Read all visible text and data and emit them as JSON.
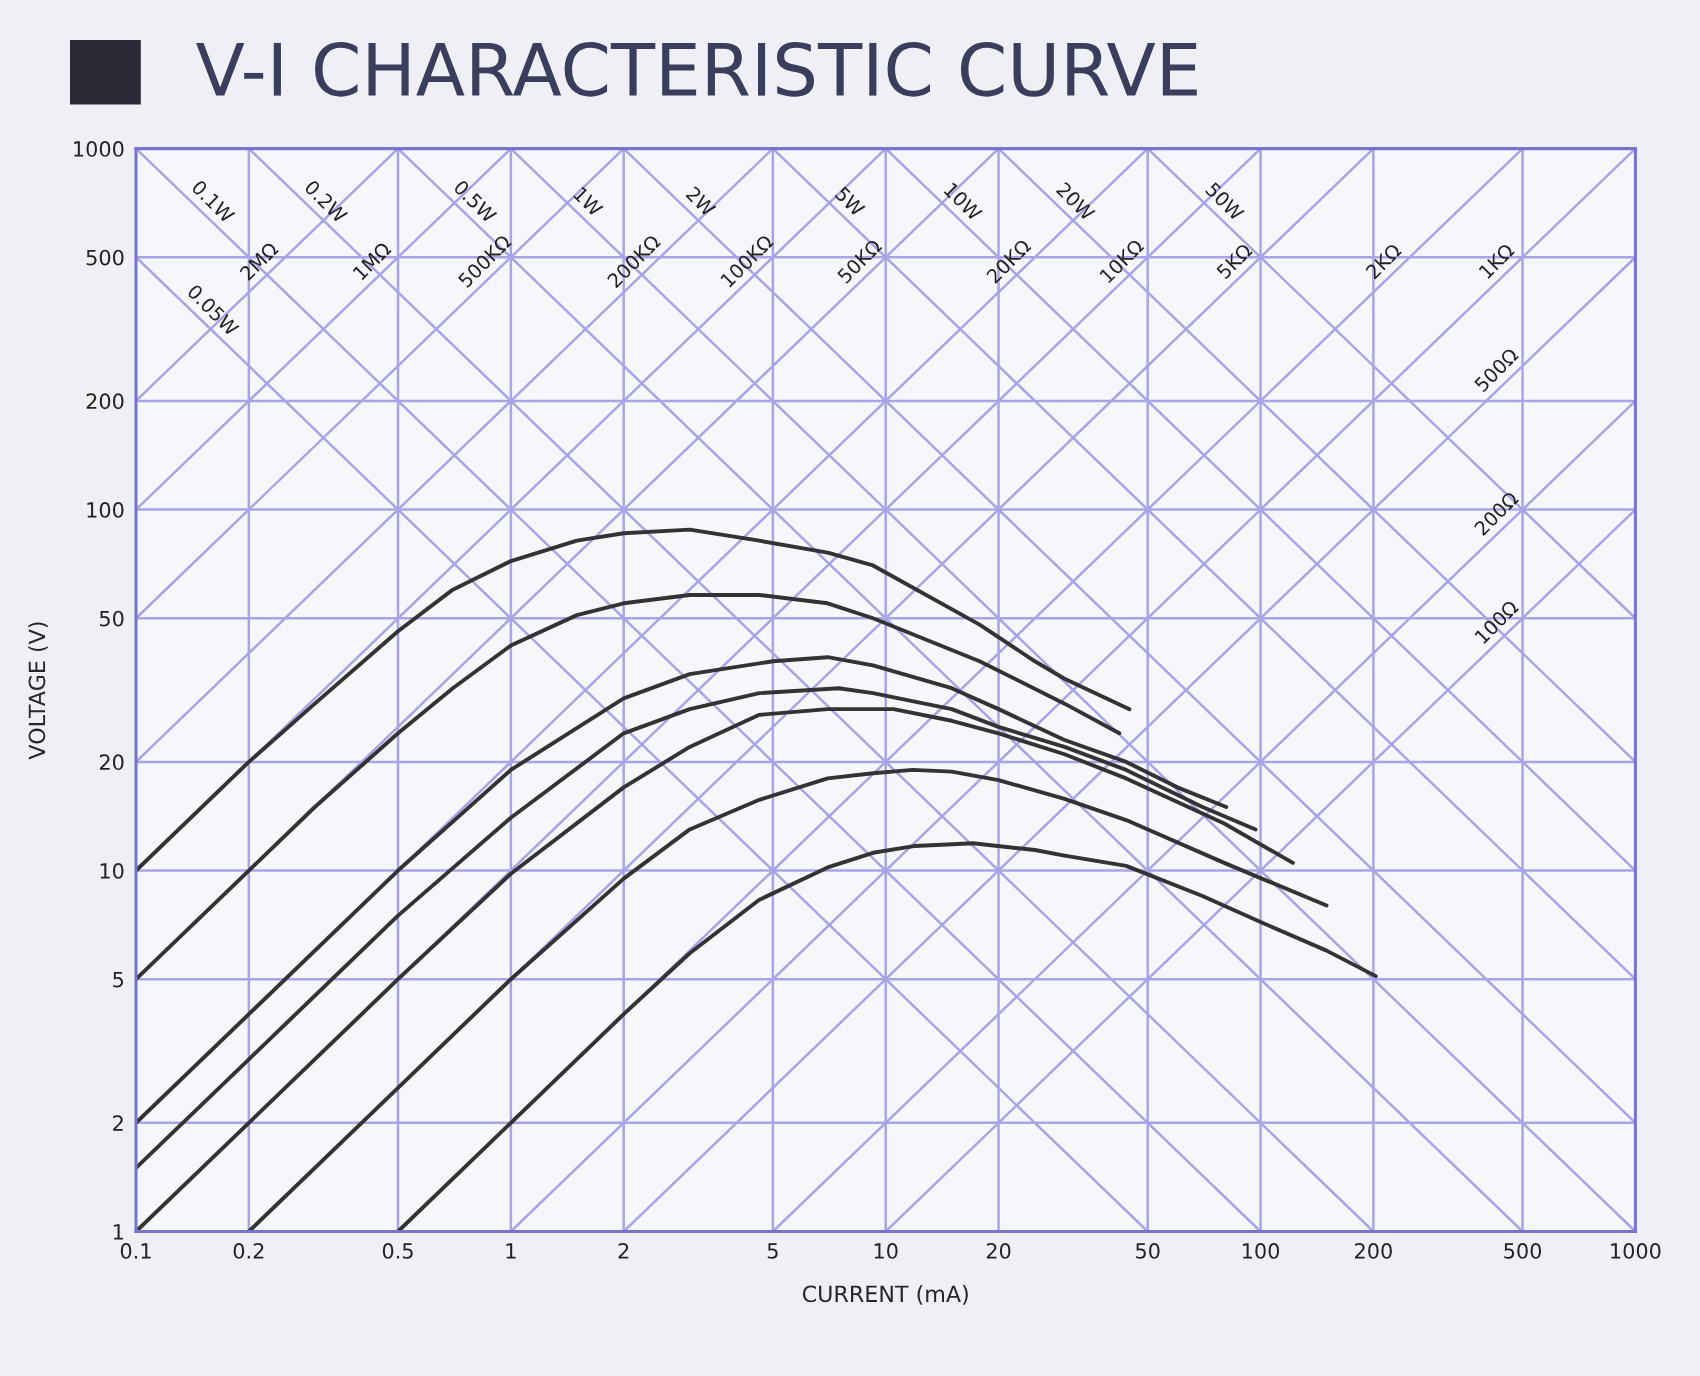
{
  "chart_data": {
    "type": "line",
    "title": "V-I CHARACTERISTIC CURVE",
    "xlabel": "CURRENT (mA)",
    "ylabel": "VOLTAGE (V)",
    "log": "xy",
    "xlim": [
      0.1,
      1000
    ],
    "ylim": [
      1,
      1000
    ],
    "xticks": [
      0.1,
      0.2,
      0.5,
      1,
      2,
      5,
      10,
      20,
      50,
      100,
      200,
      500,
      1000
    ],
    "yticks": [
      1,
      2,
      5,
      10,
      20,
      50,
      100,
      200,
      500,
      1000
    ],
    "grid": true,
    "legend": false,
    "marker": "none",
    "line_style": "solid",
    "series": [
      {
        "color": "#333333",
        "x": [
          0.1,
          0.2,
          0.3,
          0.5,
          0.7,
          1,
          1.5,
          2,
          3,
          4.6,
          7,
          9.25,
          17.8,
          25,
          30,
          44.7
        ],
        "values": [
          10,
          20,
          29,
          46,
          60,
          72,
          82,
          86,
          88,
          82,
          76,
          70,
          48,
          38,
          34,
          28
        ]
      },
      {
        "color": "#333333",
        "x": [
          0.1,
          0.2,
          0.3,
          0.5,
          0.7,
          1,
          1.5,
          2,
          3,
          4.6,
          7,
          9.25,
          17.8,
          30,
          42
        ],
        "values": [
          5,
          10,
          15,
          24,
          32,
          42,
          51,
          55,
          58,
          58,
          55,
          50,
          38,
          29,
          24
        ]
      },
      {
        "color": "#333333",
        "x": [
          0.1,
          0.2,
          0.5,
          1,
          2,
          3,
          5,
          7,
          9.25,
          15,
          20,
          30,
          43.8,
          60,
          81
        ],
        "values": [
          2,
          4,
          10,
          19,
          30,
          35,
          38,
          39,
          37,
          32,
          28,
          23,
          20,
          17,
          15
        ]
      },
      {
        "color": "#333333",
        "x": [
          0.1,
          0.2,
          0.5,
          1,
          2,
          3,
          4.6,
          7.5,
          9.25,
          15,
          20,
          30,
          43.8,
          70,
          97
        ],
        "values": [
          1.5,
          3,
          7.5,
          14,
          24,
          28,
          31,
          32,
          31,
          28,
          25,
          22,
          19,
          15,
          13
        ]
      },
      {
        "color": "#333333",
        "x": [
          0.1,
          0.2,
          0.5,
          1,
          2,
          3,
          4.6,
          7,
          10.5,
          15,
          20,
          30,
          43.8,
          80,
          122
        ],
        "values": [
          1,
          2,
          5,
          9.8,
          17,
          22,
          27,
          28,
          28,
          26,
          24,
          21,
          18,
          13.5,
          10.5
        ]
      },
      {
        "color": "#333333",
        "x": [
          0.2,
          0.5,
          1,
          2,
          3,
          4.6,
          7,
          9.25,
          11.8,
          15,
          20,
          30,
          43.8,
          80,
          150
        ],
        "values": [
          1,
          2.5,
          5,
          9.5,
          13,
          15.7,
          18,
          18.6,
          19,
          18.8,
          17.8,
          15.8,
          13.8,
          10.5,
          8
        ]
      },
      {
        "color": "#333333",
        "x": [
          0.5,
          1,
          2,
          3,
          4.6,
          7,
          9.25,
          12,
          17.1,
          25,
          30,
          43.8,
          70,
          100,
          150,
          203
        ],
        "values": [
          1,
          2,
          4,
          5.9,
          8.3,
          10.2,
          11.2,
          11.7,
          11.9,
          11.4,
          11,
          10.3,
          8.5,
          7.2,
          6,
          5.1
        ]
      },
      {
        "name": "0.05W",
        "color": "#a9a4e6",
        "x": [
          0.1,
          50
        ],
        "values": [
          500,
          1
        ]
      },
      {
        "name": "0.1W",
        "color": "#a9a4e6",
        "x": [
          0.1,
          100
        ],
        "values": [
          1000,
          1
        ]
      },
      {
        "name": "0.2W",
        "color": "#a9a4e6",
        "x": [
          0.2,
          200
        ],
        "values": [
          1000,
          1
        ]
      },
      {
        "name": "0.5W",
        "color": "#a9a4e6",
        "x": [
          0.5,
          500
        ],
        "values": [
          1000,
          1
        ]
      },
      {
        "name": "1W",
        "color": "#a9a4e6",
        "x": [
          1,
          1000
        ],
        "values": [
          1000,
          1
        ]
      },
      {
        "name": "2W",
        "color": "#a9a4e6",
        "x": [
          2,
          1000
        ],
        "values": [
          1000,
          2
        ]
      },
      {
        "name": "5W",
        "color": "#a9a4e6",
        "x": [
          5,
          1000
        ],
        "values": [
          1000,
          5
        ]
      },
      {
        "name": "10W",
        "color": "#a9a4e6",
        "x": [
          10,
          1000
        ],
        "values": [
          1000,
          10
        ]
      },
      {
        "name": "20W",
        "color": "#a9a4e6",
        "x": [
          20,
          1000
        ],
        "values": [
          1000,
          20
        ]
      },
      {
        "name": "50W",
        "color": "#a9a4e6",
        "x": [
          50,
          1000
        ],
        "values": [
          1000,
          50
        ]
      },
      {
        "name": "2MΩ",
        "color": "#a9a4e6",
        "x": [
          0.1,
          0.5
        ],
        "values": [
          200,
          1000
        ]
      },
      {
        "name": "1MΩ",
        "color": "#a9a4e6",
        "x": [
          0.1,
          1
        ],
        "values": [
          100,
          1000
        ]
      },
      {
        "name": "500KΩ",
        "color": "#a9a4e6",
        "x": [
          0.1,
          2
        ],
        "values": [
          50,
          1000
        ]
      },
      {
        "name": "200KΩ",
        "color": "#a9a4e6",
        "x": [
          0.1,
          5
        ],
        "values": [
          20,
          1000
        ]
      },
      {
        "name": "100KΩ",
        "color": "#a9a4e6",
        "x": [
          0.1,
          10
        ],
        "values": [
          10,
          1000
        ]
      },
      {
        "name": "50KΩ",
        "color": "#a9a4e6",
        "x": [
          0.1,
          20
        ],
        "values": [
          5,
          1000
        ]
      },
      {
        "name": "20KΩ",
        "color": "#a9a4e6",
        "x": [
          0.1,
          50
        ],
        "values": [
          2,
          1000
        ]
      },
      {
        "name": "10KΩ",
        "color": "#a9a4e6",
        "x": [
          0.1,
          100
        ],
        "values": [
          1,
          1000
        ]
      },
      {
        "name": "5KΩ",
        "color": "#a9a4e6",
        "x": [
          0.2,
          200
        ],
        "values": [
          1,
          1000
        ]
      },
      {
        "name": "2KΩ",
        "color": "#a9a4e6",
        "x": [
          0.5,
          500
        ],
        "values": [
          1,
          1000
        ]
      },
      {
        "name": "1KΩ",
        "color": "#a9a4e6",
        "x": [
          1,
          1000
        ],
        "values": [
          1,
          1000
        ]
      },
      {
        "name": "500Ω",
        "color": "#a9a4e6",
        "x": [
          2,
          1000
        ],
        "values": [
          1,
          500
        ]
      },
      {
        "name": "200Ω",
        "color": "#a9a4e6",
        "x": [
          5,
          1000
        ],
        "values": [
          1,
          200
        ]
      },
      {
        "name": "100Ω",
        "color": "#a9a4e6",
        "x": [
          10,
          1000
        ],
        "values": [
          1,
          100
        ]
      }
    ]
  }
}
